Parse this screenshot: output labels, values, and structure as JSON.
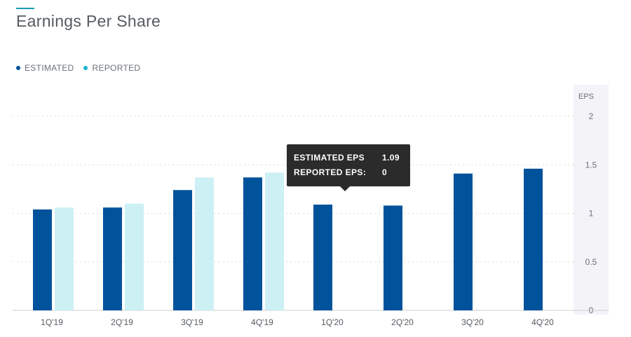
{
  "header": {
    "title": "Earnings Per Share"
  },
  "legend": [
    {
      "label": "ESTIMATED",
      "color": "#00529b"
    },
    {
      "label": "REPORTED",
      "color": "#17b2cf"
    }
  ],
  "tooltip": {
    "rows": [
      {
        "label": "ESTIMATED EPS",
        "value": "1.09"
      },
      {
        "label": "REPORTED EPS:",
        "value": "0"
      }
    ]
  },
  "chart_data": {
    "type": "bar",
    "title": "Earnings Per Share",
    "ylabel": "EPS",
    "ylim": [
      0,
      2
    ],
    "yticks": [
      "0",
      "0.5",
      "1",
      "1.5",
      "2"
    ],
    "categories": [
      "1Q'19",
      "2Q'19",
      "3Q'19",
      "4Q'19",
      "1Q'20",
      "2Q'20",
      "3Q'20",
      "4Q'20"
    ],
    "series": [
      {
        "name": "ESTIMATED",
        "color": "#00529b",
        "values": [
          1.04,
          1.06,
          1.24,
          1.37,
          1.09,
          1.08,
          1.41,
          1.46
        ]
      },
      {
        "name": "REPORTED",
        "color": "#cdf0f5",
        "values": [
          1.06,
          1.1,
          1.37,
          1.42,
          null,
          null,
          null,
          null
        ]
      }
    ],
    "grid": true,
    "legend_position": "top-left"
  }
}
